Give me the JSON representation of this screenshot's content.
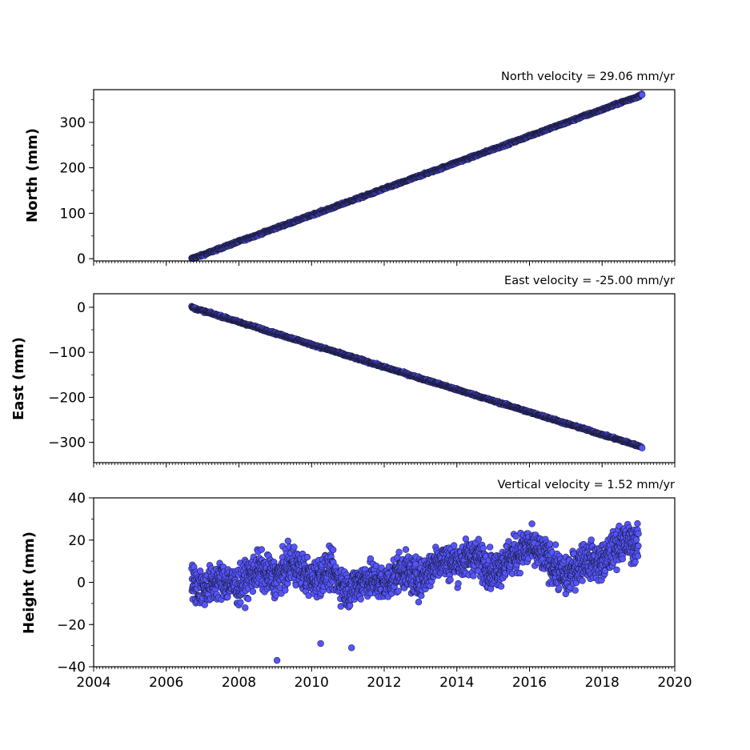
{
  "chart_data": [
    {
      "type": "scatter",
      "title": "North velocity = 29.06 mm/yr",
      "xlabel": "",
      "ylabel": "North (mm)",
      "xlim": [
        2004,
        2020
      ],
      "ylim": [
        -5,
        372
      ],
      "yticks": [
        0,
        100,
        200,
        300
      ],
      "ytick_labels": [
        "0",
        "100",
        "200",
        "300"
      ],
      "grid": false,
      "marker_color": "#5555ff",
      "marker_edge": "#1a1a3a",
      "series": [
        {
          "x": [
            2006.7,
            2006.8,
            2007.0,
            2007.5,
            2008.0,
            2008.5,
            2009.0,
            2009.5,
            2010.0,
            2010.5,
            2011.0,
            2011.5,
            2012.0,
            2012.5,
            2013.0,
            2013.5,
            2014.0,
            2014.5,
            2015.0,
            2015.5,
            2016.0,
            2016.5,
            2017.0,
            2017.5,
            2018.0,
            2018.5,
            2019.0,
            2019.1
          ],
          "values": [
            0,
            3,
            8,
            23,
            38,
            52,
            67,
            81,
            96,
            110,
            125,
            139,
            154,
            168,
            183,
            197,
            212,
            226,
            241,
            255,
            270,
            285,
            299,
            314,
            328,
            343,
            357,
            362
          ]
        }
      ]
    },
    {
      "type": "scatter",
      "title": "East velocity = -25.00 mm/yr",
      "xlabel": "",
      "ylabel": "East (mm)",
      "xlim": [
        2004,
        2020
      ],
      "ylim": [
        -345,
        30
      ],
      "yticks": [
        0,
        -100,
        -200,
        -300
      ],
      "ytick_labels": [
        "0",
        "−100",
        "−200",
        "−300"
      ],
      "grid": false,
      "marker_color": "#5555ff",
      "marker_edge": "#1a1a3a",
      "series": [
        {
          "x": [
            2006.7,
            2006.8,
            2007.0,
            2007.5,
            2008.0,
            2008.5,
            2009.0,
            2009.5,
            2010.0,
            2010.5,
            2011.0,
            2011.5,
            2012.0,
            2012.5,
            2013.0,
            2013.5,
            2014.0,
            2014.5,
            2015.0,
            2015.5,
            2016.0,
            2016.5,
            2017.0,
            2017.5,
            2018.0,
            2018.5,
            2019.0,
            2019.1
          ],
          "values": [
            0,
            -3,
            -8,
            -20,
            -33,
            -45,
            -58,
            -70,
            -83,
            -95,
            -108,
            -120,
            -133,
            -145,
            -158,
            -170,
            -183,
            -195,
            -208,
            -220,
            -233,
            -245,
            -258,
            -270,
            -283,
            -295,
            -308,
            -310
          ]
        }
      ]
    },
    {
      "type": "scatter",
      "title": "Vertical velocity = 1.52 mm/yr",
      "xlabel": "",
      "ylabel": "Height (mm)",
      "xlim": [
        2004,
        2020
      ],
      "ylim": [
        -40,
        40
      ],
      "yticks": [
        -40,
        -20,
        0,
        20,
        40
      ],
      "ytick_labels": [
        "−40",
        "−20",
        "0",
        "20",
        "40"
      ],
      "xticks": [
        2004,
        2006,
        2008,
        2010,
        2012,
        2014,
        2016,
        2018,
        2020
      ],
      "xtick_labels": [
        "2004",
        "2006",
        "2008",
        "2010",
        "2012",
        "2014",
        "2016",
        "2018",
        "2020"
      ],
      "grid": false,
      "marker_color": "#5555ff",
      "marker_edge": "#1a1a3a",
      "series": [
        {
          "x": [
            2006.7,
            2007.0,
            2007.5,
            2008.0,
            2008.5,
            2009.0,
            2009.5,
            2010.0,
            2010.5,
            2011.0,
            2011.5,
            2012.0,
            2012.5,
            2013.0,
            2013.5,
            2014.0,
            2014.5,
            2015.0,
            2015.5,
            2016.0,
            2016.5,
            2017.0,
            2017.5,
            2018.0,
            2018.5,
            2019.0
          ],
          "values": [
            0,
            -3,
            1,
            -2,
            6,
            2,
            9,
            1,
            6,
            -4,
            2,
            -1,
            6,
            1,
            11,
            9,
            13,
            5,
            12,
            17,
            11,
            2,
            11,
            9,
            19,
            18
          ]
        },
        {
          "x": [
            2009.05,
            2010.25,
            2011.1
          ],
          "values": [
            -37,
            -29,
            -31
          ]
        }
      ]
    }
  ]
}
